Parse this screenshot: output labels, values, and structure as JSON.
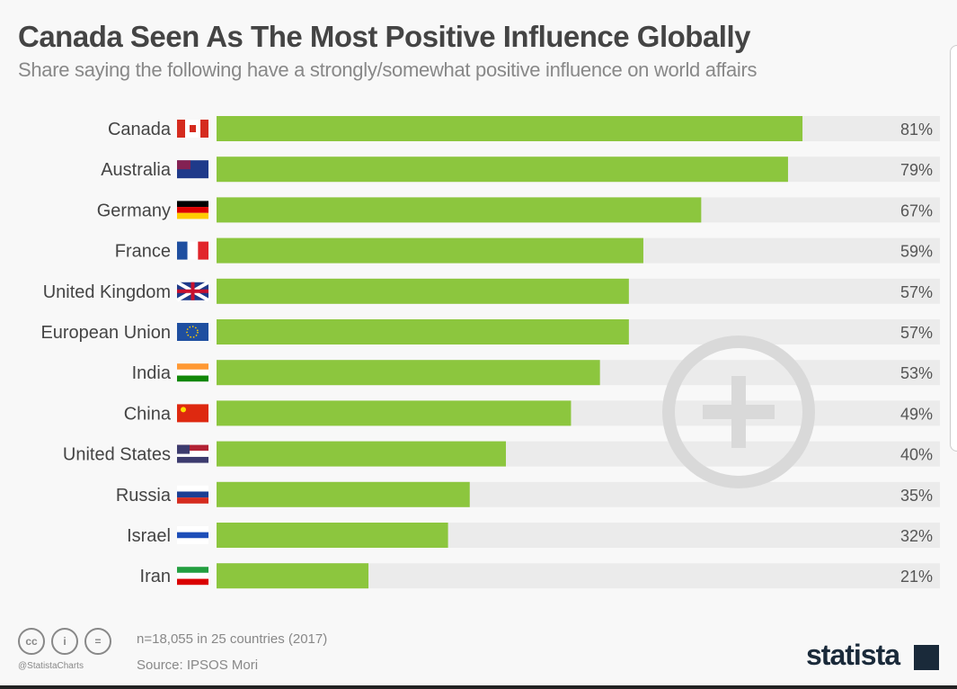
{
  "chart_data": {
    "type": "bar",
    "orientation": "horizontal",
    "title": "Canada Seen As The Most Positive Influence Globally",
    "subtitle": "Share saying the following have a strongly/somewhat positive influence on world affairs",
    "categories": [
      "Canada",
      "Australia",
      "Germany",
      "France",
      "United Kingdom",
      "European Union",
      "India",
      "China",
      "United States",
      "Russia",
      "Israel",
      "Iran"
    ],
    "values": [
      81,
      79,
      67,
      59,
      57,
      57,
      53,
      49,
      40,
      35,
      32,
      21
    ],
    "value_labels": [
      "81%",
      "79%",
      "67%",
      "59%",
      "57%",
      "57%",
      "53%",
      "49%",
      "40%",
      "35%",
      "32%",
      "21%"
    ],
    "xlim": [
      0,
      100
    ],
    "grid": false,
    "colors": {
      "bar": "#8cc63e",
      "track": "#ebebeb"
    }
  },
  "footer": {
    "note": "n=18,055 in 25 countries (2017)",
    "source": "Source: IPSOS Mori",
    "handle": "@StatistaCharts",
    "license_icons": [
      "cc",
      "by",
      "nd"
    ],
    "logo": "statista"
  }
}
